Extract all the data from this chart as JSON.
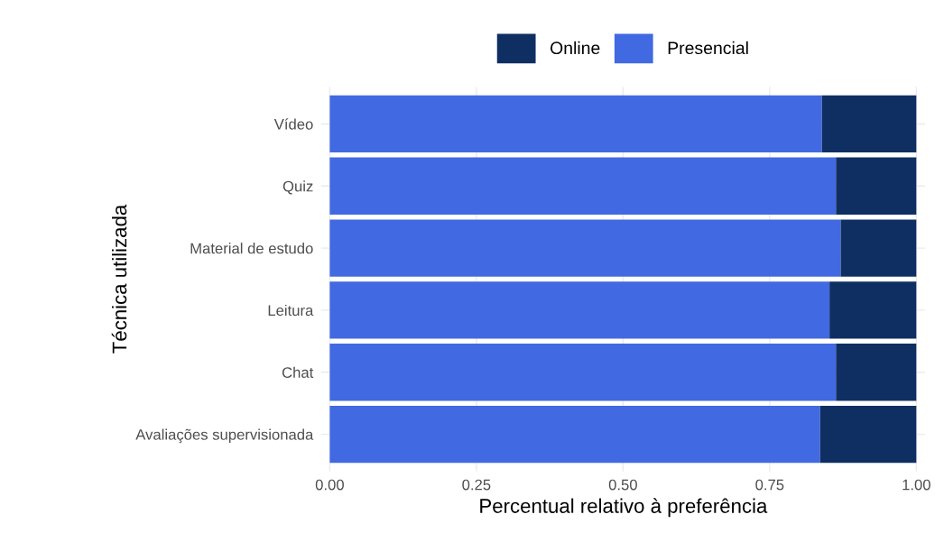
{
  "chart_data": {
    "type": "bar",
    "orientation": "horizontal",
    "stacked": true,
    "xlabel": "Percentual relativo à preferência",
    "ylabel": "Técnica utilizada",
    "categories": [
      "Vídeo",
      "Quiz",
      "Material de estudo",
      "Leitura",
      "Chat",
      "Avaliações supervisionada"
    ],
    "series": [
      {
        "name": "Presencial",
        "color": "#4169e1",
        "values": [
          0.839,
          0.863,
          0.871,
          0.852,
          0.863,
          0.836
        ]
      },
      {
        "name": "Online",
        "color": "#0f2f63",
        "values": [
          0.161,
          0.137,
          0.129,
          0.148,
          0.137,
          0.164
        ]
      }
    ],
    "xlim": [
      -0.015,
      1.015
    ],
    "xticks": [
      {
        "value": 0,
        "label": "0.00"
      },
      {
        "value": 0.25,
        "label": "0.25"
      },
      {
        "value": 0.5,
        "label": "0.50"
      },
      {
        "value": 0.75,
        "label": "0.75"
      },
      {
        "value": 1,
        "label": "1.00"
      }
    ],
    "grid": true,
    "legend": "top"
  }
}
